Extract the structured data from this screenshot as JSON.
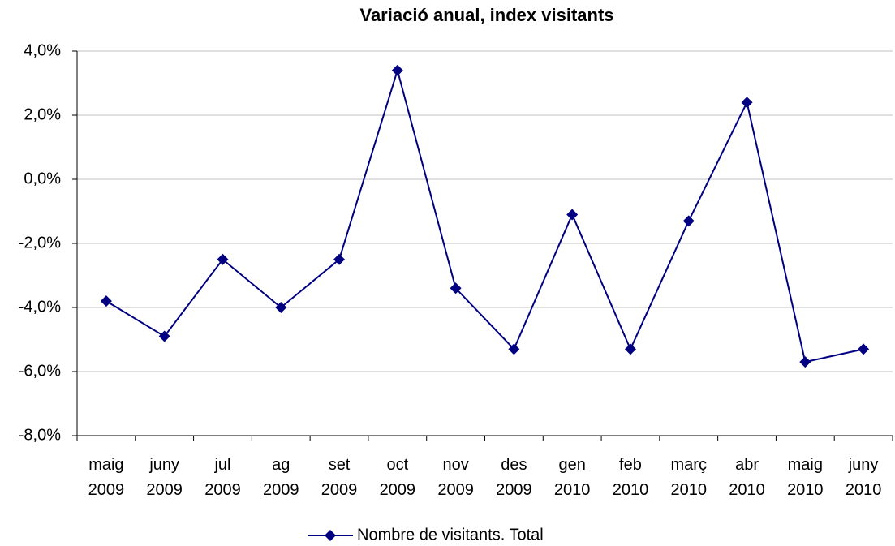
{
  "chart_data": {
    "type": "line",
    "title": "Variació anual, index visitants",
    "categories": [
      "maig 2009",
      "juny 2009",
      "jul 2009",
      "ag 2009",
      "set 2009",
      "oct 2009",
      "nov 2009",
      "des 2009",
      "gen 2010",
      "feb 2010",
      "març 2010",
      "abr 2010",
      "maig 2010",
      "juny 2010"
    ],
    "series": [
      {
        "name": "Nombre de visitants. Total",
        "color": "#000080",
        "values": [
          -3.8,
          -4.9,
          -2.5,
          -4.0,
          -2.5,
          3.4,
          -3.4,
          -5.3,
          -1.1,
          -5.3,
          -1.3,
          2.4,
          -5.7,
          -5.3
        ]
      }
    ],
    "ylim": [
      -8,
      4
    ],
    "yticks": [
      {
        "value": -8,
        "label": "-8,0%"
      },
      {
        "value": -6,
        "label": "-6,0%"
      },
      {
        "value": -4,
        "label": "-4,0%"
      },
      {
        "value": -2,
        "label": "-2,0%"
      },
      {
        "value": 0,
        "label": "0,0%"
      },
      {
        "value": 2,
        "label": "2,0%"
      },
      {
        "value": 4,
        "label": "4,0%"
      }
    ],
    "grid": true,
    "legend": "bottom"
  }
}
